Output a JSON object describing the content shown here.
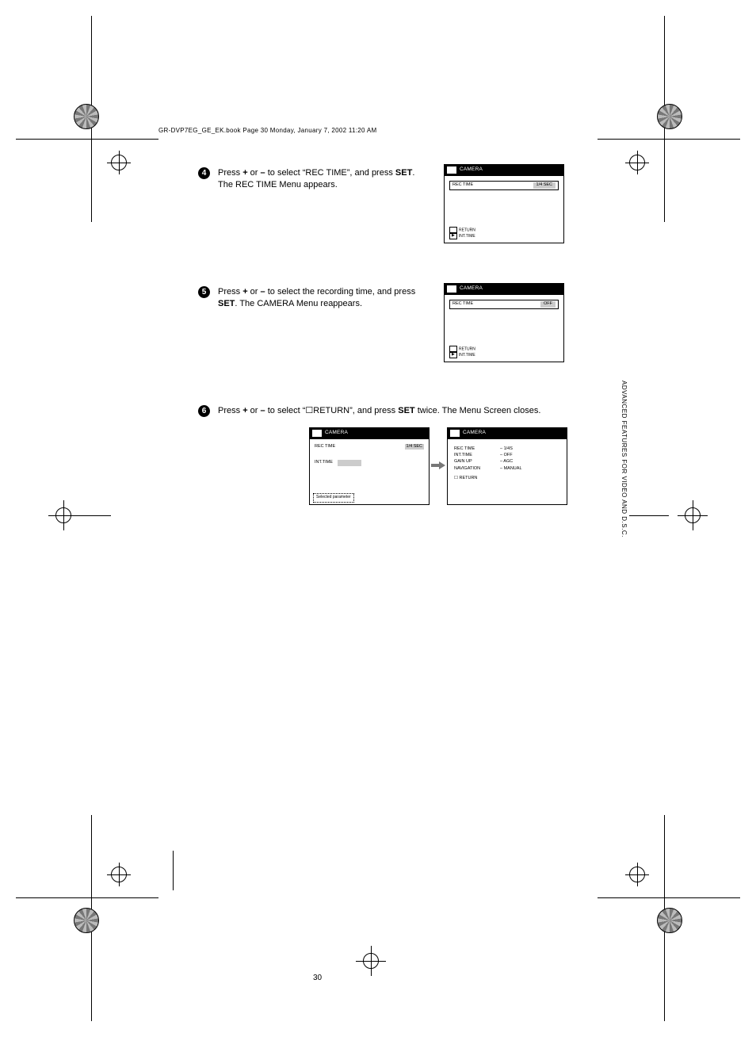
{
  "header_line": "GR-DVP7EG_GE_EK.book  Page 30  Monday, January 7, 2002  11:20 AM",
  "steps": {
    "s4": {
      "num": "4",
      "html": "Press <b>+</b> or <b>–</b> to select “REC TIME”, and press <b>SET</b>. The REC TIME Menu appears."
    },
    "s5": {
      "num": "5",
      "html": "Press <b>+</b> or <b>–</b> to select the recording time, and press <b>SET</b>. The CAMERA Menu reappears."
    },
    "s6": {
      "num": "6",
      "html": "Press <b>+</b> or <b>–</b> to select “☐RETURN”, and press <b>SET</b> twice. The Menu Screen closes."
    }
  },
  "osd_a": {
    "title": "CAMERA",
    "row_label": "REC TIME",
    "row_value": "1/4 SEC",
    "hint1": "RETURN",
    "hint2": "INT.TIME"
  },
  "osd_b": {
    "title": "CAMERA",
    "row_label": "REC TIME",
    "row_value": "OFF",
    "hint1": "RETURN",
    "hint2": "INT.TIME"
  },
  "osd_c": {
    "title": "CAMERA",
    "top_label": "REC TIME",
    "top_value": "1/4 SEC",
    "row2_label": "INT.TIME",
    "note": "Selected parameter"
  },
  "osd_d": {
    "title": "CAMERA",
    "rows": [
      {
        "k": "REC TIME",
        "v": "– 1/4S"
      },
      {
        "k": "INT.TIME",
        "v": "– OFF"
      },
      {
        "k": "GAIN UP",
        "v": "– AGC"
      },
      {
        "k": "NAVIGATION",
        "v": "– MANUAL"
      }
    ],
    "ret": "RETURN"
  },
  "page_number": "30",
  "side_tab": "ADVANCED FEATURES FOR VIDEO AND D.S.C."
}
